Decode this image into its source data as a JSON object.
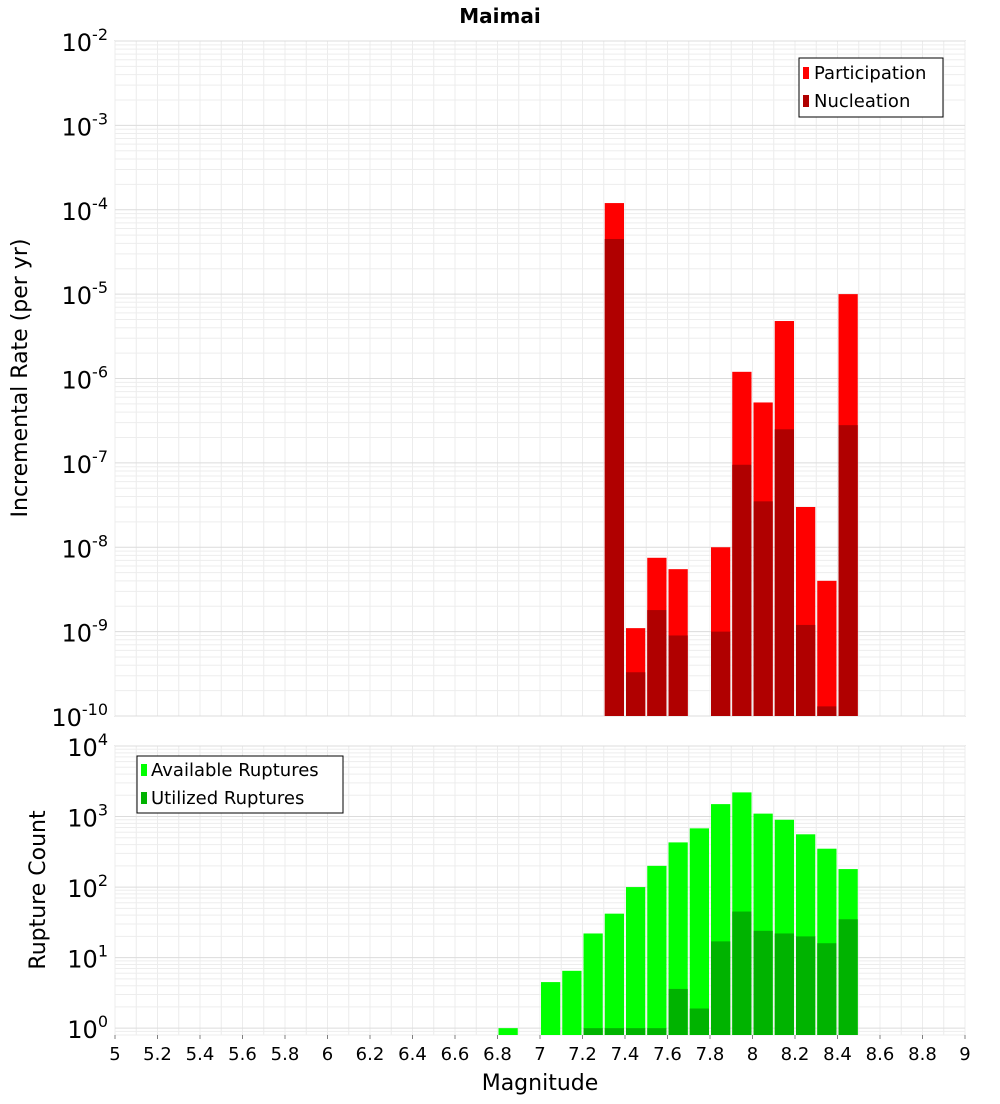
{
  "chart_data": [
    {
      "type": "bar",
      "title": "Maimai",
      "ylabel": "Incremental Rate (per yr)",
      "xlabel": "",
      "yscale": "log",
      "xlim": [
        5,
        9
      ],
      "ylim": [
        1e-10,
        0.01
      ],
      "y_tick_exponents": [
        -2,
        -3,
        -4,
        -5,
        -6,
        -7,
        -8,
        -9,
        -10
      ],
      "grid": true,
      "bin_width": 0.1,
      "legend_position": "top-right",
      "series": [
        {
          "name": "Participation",
          "color": "#ff0000",
          "x": [
            7.35,
            7.45,
            7.55,
            7.65,
            7.85,
            7.95,
            8.05,
            8.15,
            8.25,
            8.35,
            8.45
          ],
          "values": [
            0.00012,
            1.1e-09,
            7.5e-09,
            5.5e-09,
            1e-08,
            1.2e-06,
            5.2e-07,
            4.8e-06,
            3e-08,
            4e-09,
            1e-05
          ]
        },
        {
          "name": "Nucleation",
          "color": "#b00000",
          "x": [
            7.35,
            7.45,
            7.55,
            7.65,
            7.85,
            7.95,
            8.05,
            8.15,
            8.25,
            8.35,
            8.45
          ],
          "values": [
            4.5e-05,
            3.3e-10,
            1.8e-09,
            9e-10,
            1e-09,
            9.5e-08,
            3.5e-08,
            2.5e-07,
            1.2e-09,
            1.3e-10,
            2.8e-07
          ]
        }
      ]
    },
    {
      "type": "bar",
      "title": "",
      "ylabel": "Rupture Count",
      "xlabel": "Magnitude",
      "yscale": "log",
      "xlim": [
        5,
        9
      ],
      "ylim": [
        0.8,
        10000.0
      ],
      "x_ticks": [
        "5",
        "5.2",
        "5.4",
        "5.6",
        "5.8",
        "6",
        "6.2",
        "6.4",
        "6.6",
        "6.8",
        "7",
        "7.2",
        "7.4",
        "7.6",
        "7.8",
        "8",
        "8.2",
        "8.4",
        "8.6",
        "8.8",
        "9"
      ],
      "y_tick_exponents": [
        4,
        3,
        2,
        1,
        0
      ],
      "grid": true,
      "bin_width": 0.1,
      "legend_position": "top-left",
      "series": [
        {
          "name": "Available Ruptures",
          "color": "#00ff00",
          "x": [
            6.85,
            7.05,
            7.15,
            7.25,
            7.35,
            7.45,
            7.55,
            7.65,
            7.75,
            7.85,
            7.95,
            8.05,
            8.15,
            8.25,
            8.35,
            8.45
          ],
          "values": [
            1,
            4.5,
            6.5,
            22,
            42,
            100,
            200,
            430,
            680,
            1500,
            2200,
            1100,
            900,
            560,
            350,
            180
          ]
        },
        {
          "name": "Utilized Ruptures",
          "color": "#00b300",
          "x": [
            7.25,
            7.35,
            7.45,
            7.55,
            7.65,
            7.75,
            7.85,
            7.95,
            8.05,
            8.15,
            8.25,
            8.35,
            8.45
          ],
          "values": [
            1,
            1,
            1,
            1,
            3.6,
            1.9,
            17,
            45,
            24,
            22,
            20,
            16,
            35
          ]
        }
      ]
    }
  ]
}
